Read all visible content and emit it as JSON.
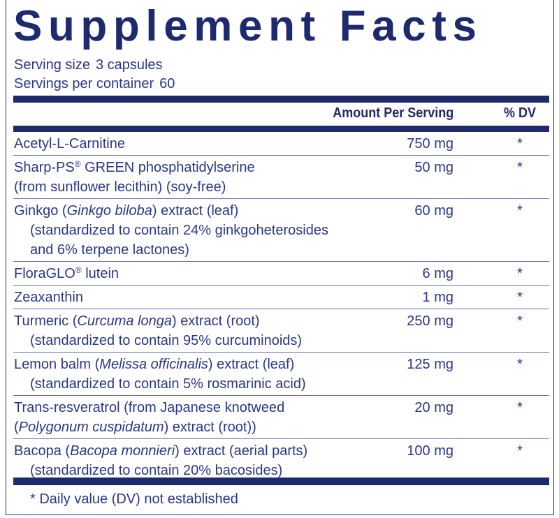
{
  "title": "Supplement Facts",
  "serving_size": {
    "label": "Serving size",
    "value": "3 capsules"
  },
  "servings_per_container": {
    "label": "Servings per container",
    "value": "60"
  },
  "table": {
    "header": {
      "amount": "Amount Per Serving",
      "dv": "% DV"
    },
    "rows": [
      {
        "lines": [
          {
            "segs": [
              {
                "t": "Acetyl-L-Carnitine"
              }
            ]
          }
        ],
        "amount": "750 mg",
        "dv": "*"
      },
      {
        "lines": [
          {
            "segs": [
              {
                "t": "Sharp-PS"
              },
              {
                "sup": "®"
              },
              {
                "t": " GREEN phosphatidylserine"
              }
            ]
          },
          {
            "segs": [
              {
                "t": "(from sunflower lecithin) (soy-free)"
              }
            ]
          }
        ],
        "amount": "50 mg",
        "dv": "*"
      },
      {
        "lines": [
          {
            "segs": [
              {
                "t": "Ginkgo ("
              },
              {
                "i": "Ginkgo biloba"
              },
              {
                "t": ") extract (leaf)"
              }
            ]
          },
          {
            "indent": true,
            "segs": [
              {
                "t": "(standardized to contain 24% ginkgoheterosides"
              }
            ]
          },
          {
            "indent": true,
            "segs": [
              {
                "t": "and 6% terpene lactones)"
              }
            ]
          }
        ],
        "amount": "60 mg",
        "dv": "*"
      },
      {
        "lines": [
          {
            "segs": [
              {
                "t": "FloraGLO"
              },
              {
                "sup": "®"
              },
              {
                "t": " lutein"
              }
            ]
          }
        ],
        "amount": "6 mg",
        "dv": "*"
      },
      {
        "lines": [
          {
            "segs": [
              {
                "t": "Zeaxanthin"
              }
            ]
          }
        ],
        "amount": "1 mg",
        "dv": "*"
      },
      {
        "lines": [
          {
            "segs": [
              {
                "t": "Turmeric ("
              },
              {
                "i": "Curcuma longa"
              },
              {
                "t": ") extract (root)"
              }
            ]
          },
          {
            "indent": true,
            "segs": [
              {
                "t": "(standardized to contain 95% curcuminoids)"
              }
            ]
          }
        ],
        "amount": "250 mg",
        "dv": "*"
      },
      {
        "lines": [
          {
            "segs": [
              {
                "t": "Lemon balm ("
              },
              {
                "i": "Melissa officinalis"
              },
              {
                "t": ") extract (leaf)"
              }
            ]
          },
          {
            "indent": true,
            "segs": [
              {
                "t": "(standardized to contain 5% rosmarinic acid)"
              }
            ]
          }
        ],
        "amount": "125 mg",
        "dv": "*"
      },
      {
        "lines": [
          {
            "segs": [
              {
                "t": "Trans-resveratrol (from Japanese knotweed"
              }
            ]
          },
          {
            "segs": [
              {
                "t": "("
              },
              {
                "i": "Polygonum cuspidatum"
              },
              {
                "t": ") extract (root))"
              }
            ]
          }
        ],
        "amount": "20 mg",
        "dv": "*"
      },
      {
        "lines": [
          {
            "segs": [
              {
                "t": "Bacopa ("
              },
              {
                "i": "Bacopa monnieri"
              },
              {
                "t": ") extract (aerial parts)"
              }
            ]
          },
          {
            "indent": true,
            "segs": [
              {
                "t": "(standardized to contain 20% bacosides)"
              }
            ]
          }
        ],
        "amount": "100 mg",
        "dv": "*"
      }
    ]
  },
  "footnote": "* Daily value (DV) not established"
}
